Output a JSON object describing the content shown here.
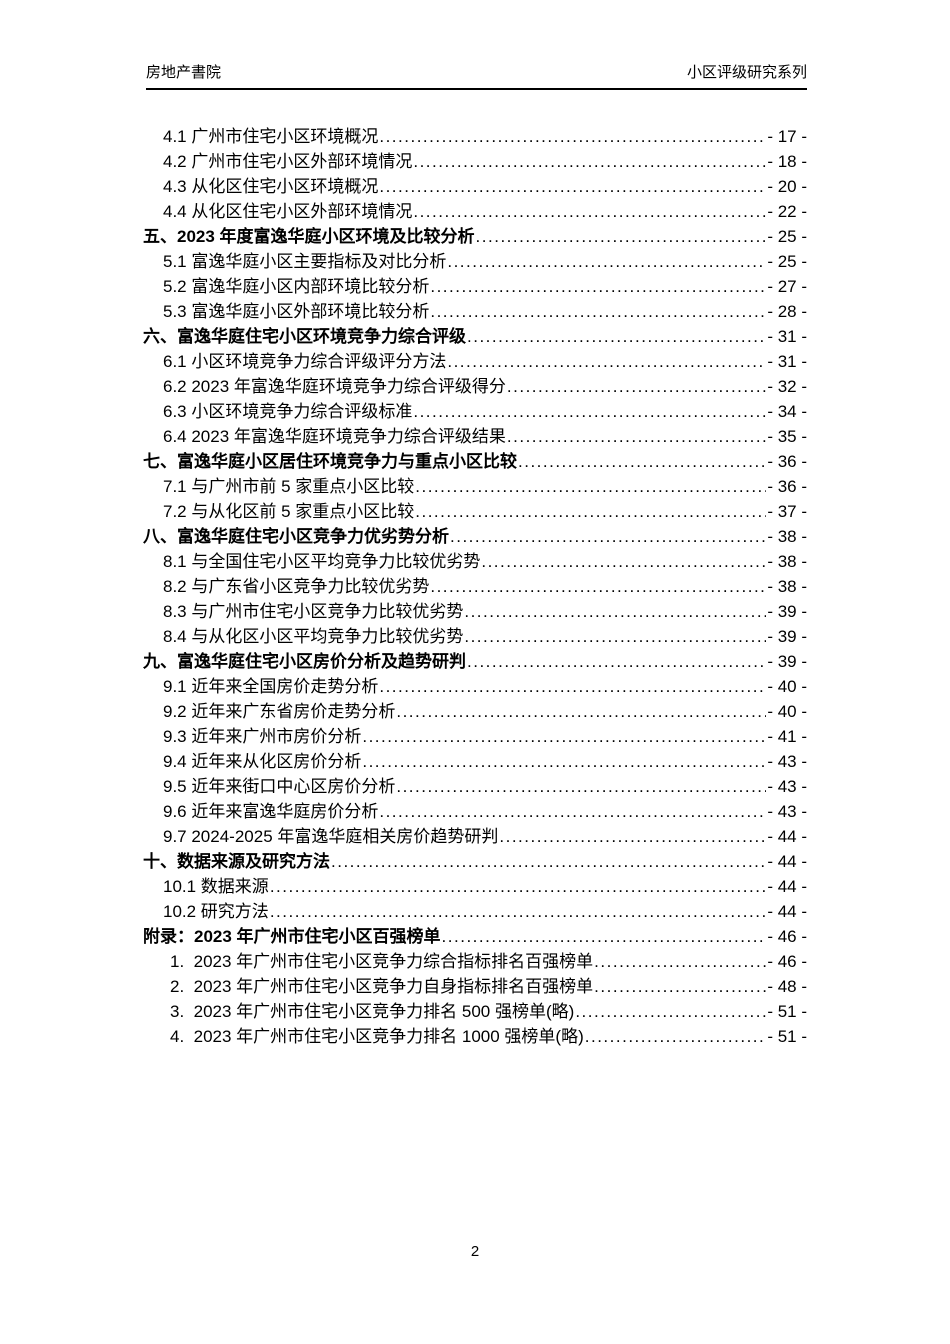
{
  "page": {
    "background_color": "#ffffff",
    "text_color": "#000000"
  },
  "header": {
    "left_text": "房地产書院",
    "right_text": "小区评级研究系列"
  },
  "toc": {
    "entries": [
      {
        "level": 1,
        "bold": false,
        "label": "4.1 广州市住宅小区环境概况",
        "page": "- 17 -"
      },
      {
        "level": 1,
        "bold": false,
        "label": "4.2 广州市住宅小区外部环境情况",
        "page": "- 18 -"
      },
      {
        "level": 1,
        "bold": false,
        "label": "4.3 从化区住宅小区环境概况",
        "page": "- 20 -"
      },
      {
        "level": 1,
        "bold": false,
        "label": "4.4 从化区住宅小区外部环境情况",
        "page": "- 22 -"
      },
      {
        "level": 0,
        "bold": true,
        "label": "五、2023 年度富逸华庭小区环境及比较分析",
        "page": "- 25 -"
      },
      {
        "level": 1,
        "bold": false,
        "label": "5.1 富逸华庭小区主要指标及对比分析",
        "page": "- 25 -"
      },
      {
        "level": 1,
        "bold": false,
        "label": "5.2 富逸华庭小区内部环境比较分析",
        "page": "- 27 -"
      },
      {
        "level": 1,
        "bold": false,
        "label": "5.3 富逸华庭小区外部环境比较分析",
        "page": "- 28 -"
      },
      {
        "level": 0,
        "bold": true,
        "label": "六、富逸华庭住宅小区环境竞争力综合评级",
        "page": "- 31 -"
      },
      {
        "level": 1,
        "bold": false,
        "label": "6.1 小区环境竞争力综合评级评分方法",
        "page": "- 31 -"
      },
      {
        "level": 1,
        "bold": false,
        "label": "6.2 2023 年富逸华庭环境竞争力综合评级得分",
        "page": "- 32 -"
      },
      {
        "level": 1,
        "bold": false,
        "label": "6.3 小区环境竞争力综合评级标准",
        "page": "- 34 -"
      },
      {
        "level": 1,
        "bold": false,
        "label": "6.4 2023 年富逸华庭环境竞争力综合评级结果",
        "page": "- 35 -"
      },
      {
        "level": 0,
        "bold": true,
        "label": "七、富逸华庭小区居住环境竞争力与重点小区比较",
        "page": "- 36 -"
      },
      {
        "level": 1,
        "bold": false,
        "label": "7.1 与广州市前 5 家重点小区比较",
        "page": "- 36 -"
      },
      {
        "level": 1,
        "bold": false,
        "label": "7.2 与从化区前 5 家重点小区比较",
        "page": "- 37 -"
      },
      {
        "level": 0,
        "bold": true,
        "label": "八、富逸华庭住宅小区竞争力优劣势分析",
        "page": "- 38 -"
      },
      {
        "level": 1,
        "bold": false,
        "label": "8.1 与全国住宅小区平均竞争力比较优劣势",
        "page": "- 38 -"
      },
      {
        "level": 1,
        "bold": false,
        "label": "8.2 与广东省小区竞争力比较优劣势",
        "page": "- 38 -"
      },
      {
        "level": 1,
        "bold": false,
        "label": "8.3 与广州市住宅小区竞争力比较优劣势",
        "page": "- 39 -"
      },
      {
        "level": 1,
        "bold": false,
        "label": "8.4 与从化区小区平均竞争力比较优劣势",
        "page": "- 39 -"
      },
      {
        "level": 0,
        "bold": true,
        "label": "九、富逸华庭住宅小区房价分析及趋势研判",
        "page": "- 39 -"
      },
      {
        "level": 1,
        "bold": false,
        "label": "9.1 近年来全国房价走势分析",
        "page": "- 40 -"
      },
      {
        "level": 1,
        "bold": false,
        "label": "9.2 近年来广东省房价走势分析",
        "page": "- 40 -"
      },
      {
        "level": 1,
        "bold": false,
        "label": "9.3 近年来广州市房价分析",
        "page": "- 41 -"
      },
      {
        "level": 1,
        "bold": false,
        "label": "9.4 近年来从化区房价分析",
        "page": "- 43 -"
      },
      {
        "level": 1,
        "bold": false,
        "label": "9.5 近年来街口中心区房价分析",
        "page": "- 43 -"
      },
      {
        "level": 1,
        "bold": false,
        "label": "9.6 近年来富逸华庭房价分析",
        "page": "- 43 -"
      },
      {
        "level": 1,
        "bold": false,
        "label": "9.7 2024-2025 年富逸华庭相关房价趋势研判",
        "page": "- 44 -"
      },
      {
        "level": 0,
        "bold": true,
        "label": "十、数据来源及研究方法",
        "page": "- 44 -"
      },
      {
        "level": 1,
        "bold": false,
        "label": "10.1 数据来源",
        "page": "- 44 -"
      },
      {
        "level": 1,
        "bold": false,
        "label": "10.2 研究方法",
        "page": "- 44 -"
      },
      {
        "level": 0,
        "bold": true,
        "label": "附录：2023 年广州市住宅小区百强榜单",
        "page": "- 46 -"
      },
      {
        "level": 2,
        "bold": false,
        "label": "1.  2023 年广州市住宅小区竞争力综合指标排名百强榜单",
        "page": "- 46 -"
      },
      {
        "level": 2,
        "bold": false,
        "label": "2.  2023 年广州市住宅小区竞争力自身指标排名百强榜单",
        "page": "- 48 -"
      },
      {
        "level": 2,
        "bold": false,
        "label": "3.  2023 年广州市住宅小区竞争力排名 500 强榜单(略)",
        "page": "- 51 -"
      },
      {
        "level": 2,
        "bold": false,
        "label": "4.  2023 年广州市住宅小区竞争力排名 1000 强榜单(略)",
        "page": "- 51 -"
      }
    ]
  },
  "footer": {
    "page_number": "2"
  }
}
